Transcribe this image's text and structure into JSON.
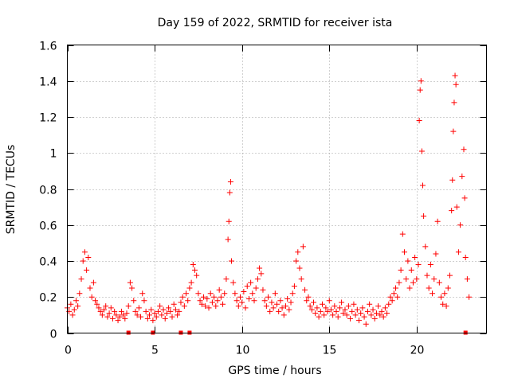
{
  "chart_data": {
    "type": "scatter",
    "title": "Day 159 of 2022, SRMTID for receiver ista",
    "xlabel": "GPS time / hours",
    "ylabel": "SRMTID / TECUs",
    "xlim": [
      0,
      24
    ],
    "ylim": [
      0,
      1.6
    ],
    "x_ticks": [
      0,
      5,
      10,
      15,
      20
    ],
    "x_tick_labels": [
      "0",
      "5",
      "10",
      "15",
      "20"
    ],
    "y_ticks": [
      0,
      0.2,
      0.4,
      0.6,
      0.8,
      1,
      1.2,
      1.4,
      1.6
    ],
    "y_tick_labels": [
      "0",
      "0.2",
      "0.4",
      "0.6",
      "0.8",
      "1",
      "1.2",
      "1.4",
      "1.6"
    ],
    "grid": true,
    "marker": "+",
    "color": "#ff0000",
    "series": [
      {
        "name": "SRMTID",
        "points": [
          [
            0.0,
            0.14
          ],
          [
            0.1,
            0.12
          ],
          [
            0.2,
            0.16
          ],
          [
            0.3,
            0.1
          ],
          [
            0.4,
            0.13
          ],
          [
            0.5,
            0.18
          ],
          [
            0.6,
            0.15
          ],
          [
            0.7,
            0.22
          ],
          [
            0.8,
            0.3
          ],
          [
            0.9,
            0.4
          ],
          [
            1.0,
            0.45
          ],
          [
            1.1,
            0.35
          ],
          [
            1.2,
            0.42
          ],
          [
            1.3,
            0.25
          ],
          [
            1.4,
            0.2
          ],
          [
            1.5,
            0.28
          ],
          [
            1.6,
            0.18
          ],
          [
            1.7,
            0.16
          ],
          [
            1.8,
            0.14
          ],
          [
            1.9,
            0.12
          ],
          [
            2.0,
            0.1
          ],
          [
            2.1,
            0.13
          ],
          [
            2.2,
            0.15
          ],
          [
            2.3,
            0.09
          ],
          [
            2.4,
            0.11
          ],
          [
            2.5,
            0.14
          ],
          [
            2.6,
            0.08
          ],
          [
            2.7,
            0.12
          ],
          [
            2.8,
            0.1
          ],
          [
            2.9,
            0.07
          ],
          [
            3.0,
            0.09
          ],
          [
            3.1,
            0.12
          ],
          [
            3.2,
            0.1
          ],
          [
            3.3,
            0.08
          ],
          [
            3.4,
            0.11
          ],
          [
            3.5,
            0.15
          ],
          [
            3.6,
            0.28
          ],
          [
            3.7,
            0.25
          ],
          [
            3.8,
            0.18
          ],
          [
            3.9,
            0.12
          ],
          [
            4.0,
            0.1
          ],
          [
            4.1,
            0.14
          ],
          [
            4.2,
            0.09
          ],
          [
            4.3,
            0.22
          ],
          [
            4.4,
            0.18
          ],
          [
            4.5,
            0.12
          ],
          [
            4.6,
            0.08
          ],
          [
            4.7,
            0.1
          ],
          [
            4.8,
            0.13
          ],
          [
            4.9,
            0.07
          ],
          [
            5.0,
            0.11
          ],
          [
            5.1,
            0.09
          ],
          [
            5.2,
            0.12
          ],
          [
            5.3,
            0.15
          ],
          [
            5.4,
            0.1
          ],
          [
            5.5,
            0.13
          ],
          [
            5.6,
            0.08
          ],
          [
            5.7,
            0.11
          ],
          [
            5.8,
            0.14
          ],
          [
            5.9,
            0.12
          ],
          [
            6.0,
            0.09
          ],
          [
            6.1,
            0.16
          ],
          [
            6.2,
            0.13
          ],
          [
            6.3,
            0.1
          ],
          [
            6.4,
            0.12
          ],
          [
            6.5,
            0.17
          ],
          [
            6.6,
            0.2
          ],
          [
            6.7,
            0.15
          ],
          [
            6.8,
            0.22
          ],
          [
            6.9,
            0.18
          ],
          [
            7.0,
            0.25
          ],
          [
            7.1,
            0.28
          ],
          [
            7.2,
            0.38
          ],
          [
            7.3,
            0.35
          ],
          [
            7.4,
            0.32
          ],
          [
            7.5,
            0.22
          ],
          [
            7.6,
            0.18
          ],
          [
            7.7,
            0.16
          ],
          [
            7.8,
            0.2
          ],
          [
            7.9,
            0.15
          ],
          [
            8.0,
            0.19
          ],
          [
            8.1,
            0.14
          ],
          [
            8.2,
            0.22
          ],
          [
            8.3,
            0.17
          ],
          [
            8.4,
            0.2
          ],
          [
            8.5,
            0.15
          ],
          [
            8.6,
            0.18
          ],
          [
            8.7,
            0.24
          ],
          [
            8.8,
            0.2
          ],
          [
            8.9,
            0.16
          ],
          [
            9.0,
            0.22
          ],
          [
            9.1,
            0.3
          ],
          [
            9.2,
            0.52
          ],
          [
            9.25,
            0.62
          ],
          [
            9.3,
            0.78
          ],
          [
            9.35,
            0.84
          ],
          [
            9.4,
            0.4
          ],
          [
            9.5,
            0.28
          ],
          [
            9.6,
            0.22
          ],
          [
            9.7,
            0.18
          ],
          [
            9.8,
            0.15
          ],
          [
            9.9,
            0.2
          ],
          [
            10.0,
            0.17
          ],
          [
            10.1,
            0.23
          ],
          [
            10.2,
            0.14
          ],
          [
            10.3,
            0.26
          ],
          [
            10.4,
            0.19
          ],
          [
            10.5,
            0.28
          ],
          [
            10.6,
            0.22
          ],
          [
            10.7,
            0.18
          ],
          [
            10.8,
            0.25
          ],
          [
            10.9,
            0.3
          ],
          [
            11.0,
            0.36
          ],
          [
            11.1,
            0.33
          ],
          [
            11.2,
            0.24
          ],
          [
            11.3,
            0.18
          ],
          [
            11.4,
            0.15
          ],
          [
            11.5,
            0.2
          ],
          [
            11.6,
            0.12
          ],
          [
            11.7,
            0.17
          ],
          [
            11.8,
            0.14
          ],
          [
            11.9,
            0.22
          ],
          [
            12.0,
            0.16
          ],
          [
            12.1,
            0.12
          ],
          [
            12.2,
            0.18
          ],
          [
            12.3,
            0.14
          ],
          [
            12.4,
            0.1
          ],
          [
            12.5,
            0.15
          ],
          [
            12.6,
            0.19
          ],
          [
            12.7,
            0.13
          ],
          [
            12.8,
            0.17
          ],
          [
            12.9,
            0.22
          ],
          [
            13.0,
            0.26
          ],
          [
            13.1,
            0.4
          ],
          [
            13.2,
            0.45
          ],
          [
            13.3,
            0.36
          ],
          [
            13.4,
            0.3
          ],
          [
            13.5,
            0.48
          ],
          [
            13.6,
            0.24
          ],
          [
            13.7,
            0.18
          ],
          [
            13.8,
            0.2
          ],
          [
            13.9,
            0.15
          ],
          [
            14.0,
            0.13
          ],
          [
            14.1,
            0.17
          ],
          [
            14.2,
            0.11
          ],
          [
            14.3,
            0.14
          ],
          [
            14.4,
            0.09
          ],
          [
            14.5,
            0.12
          ],
          [
            14.6,
            0.16
          ],
          [
            14.7,
            0.1
          ],
          [
            14.8,
            0.14
          ],
          [
            14.9,
            0.12
          ],
          [
            15.0,
            0.18
          ],
          [
            15.1,
            0.13
          ],
          [
            15.2,
            0.1
          ],
          [
            15.3,
            0.15
          ],
          [
            15.4,
            0.12
          ],
          [
            15.5,
            0.09
          ],
          [
            15.6,
            0.14
          ],
          [
            15.7,
            0.17
          ],
          [
            15.8,
            0.11
          ],
          [
            15.9,
            0.13
          ],
          [
            16.0,
            0.1
          ],
          [
            16.1,
            0.15
          ],
          [
            16.2,
            0.08
          ],
          [
            16.3,
            0.12
          ],
          [
            16.4,
            0.16
          ],
          [
            16.5,
            0.1
          ],
          [
            16.6,
            0.13
          ],
          [
            16.7,
            0.07
          ],
          [
            16.8,
            0.11
          ],
          [
            16.9,
            0.14
          ],
          [
            17.0,
            0.09
          ],
          [
            17.1,
            0.05
          ],
          [
            17.2,
            0.12
          ],
          [
            17.3,
            0.16
          ],
          [
            17.4,
            0.1
          ],
          [
            17.5,
            0.13
          ],
          [
            17.6,
            0.08
          ],
          [
            17.7,
            0.11
          ],
          [
            17.8,
            0.15
          ],
          [
            17.9,
            0.1
          ],
          [
            18.0,
            0.12
          ],
          [
            18.1,
            0.09
          ],
          [
            18.2,
            0.14
          ],
          [
            18.3,
            0.11
          ],
          [
            18.4,
            0.16
          ],
          [
            18.5,
            0.2
          ],
          [
            18.6,
            0.18
          ],
          [
            18.7,
            0.22
          ],
          [
            18.8,
            0.25
          ],
          [
            18.9,
            0.2
          ],
          [
            19.0,
            0.28
          ],
          [
            19.1,
            0.35
          ],
          [
            19.2,
            0.55
          ],
          [
            19.3,
            0.45
          ],
          [
            19.4,
            0.3
          ],
          [
            19.5,
            0.4
          ],
          [
            19.6,
            0.25
          ],
          [
            19.7,
            0.35
          ],
          [
            19.8,
            0.28
          ],
          [
            19.9,
            0.42
          ],
          [
            20.0,
            0.3
          ],
          [
            20.1,
            0.38
          ],
          [
            20.15,
            1.18
          ],
          [
            20.2,
            1.35
          ],
          [
            20.25,
            1.4
          ],
          [
            20.3,
            1.01
          ],
          [
            20.35,
            0.82
          ],
          [
            20.4,
            0.65
          ],
          [
            20.5,
            0.48
          ],
          [
            20.6,
            0.32
          ],
          [
            20.7,
            0.25
          ],
          [
            20.8,
            0.38
          ],
          [
            20.9,
            0.22
          ],
          [
            21.0,
            0.3
          ],
          [
            21.1,
            0.44
          ],
          [
            21.2,
            0.62
          ],
          [
            21.3,
            0.28
          ],
          [
            21.4,
            0.2
          ],
          [
            21.5,
            0.16
          ],
          [
            21.6,
            0.22
          ],
          [
            21.7,
            0.15
          ],
          [
            21.8,
            0.25
          ],
          [
            21.9,
            0.32
          ],
          [
            22.0,
            0.68
          ],
          [
            22.05,
            0.85
          ],
          [
            22.1,
            1.12
          ],
          [
            22.15,
            1.28
          ],
          [
            22.2,
            1.43
          ],
          [
            22.25,
            1.38
          ],
          [
            22.3,
            0.7
          ],
          [
            22.4,
            0.45
          ],
          [
            22.5,
            0.6
          ],
          [
            22.6,
            0.87
          ],
          [
            22.7,
            1.02
          ],
          [
            22.75,
            0.75
          ],
          [
            22.8,
            0.42
          ],
          [
            22.9,
            0.3
          ],
          [
            23.0,
            0.2
          ]
        ]
      }
    ],
    "data_gaps_at_zero_hours": [
      3.5,
      4.9,
      6.5,
      7.0,
      22.8
    ]
  }
}
